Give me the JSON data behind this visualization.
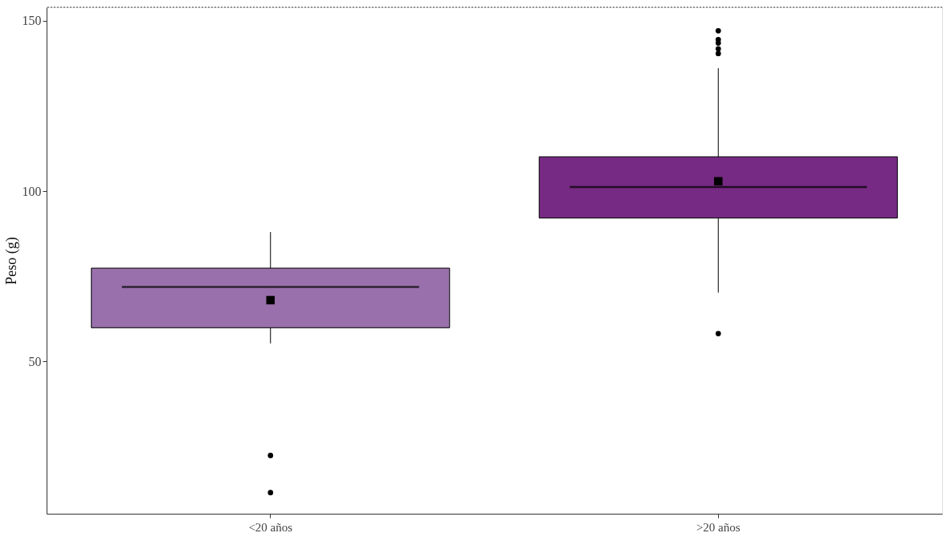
{
  "chart_data": {
    "type": "box",
    "ylabel": "Peso (g)",
    "categories": [
      "<20 años",
      ">20 años"
    ],
    "colors": [
      "#9970ab",
      "#762a83"
    ],
    "boxes": [
      {
        "low": 55.3,
        "q1": 59.9,
        "median": 71.9,
        "q3": 77.4,
        "high": 88.0,
        "mean": 68.0,
        "outliers": [
          22.4,
          11.5
        ]
      },
      {
        "low": 70.2,
        "q1": 92.1,
        "median": 101.2,
        "q3": 110.1,
        "high": 136.1,
        "mean": 102.9,
        "outliers": [
          58.2,
          140.4,
          141.8,
          143.5,
          144.5,
          147.1
        ]
      }
    ],
    "ylim": [
      5.3,
      154
    ],
    "yticks": [
      50,
      100,
      150
    ],
    "grid": false,
    "ref_lines": [
      {
        "axis": "y",
        "value": 154,
        "line_style": "dotted",
        "color": "#444444"
      }
    ]
  }
}
